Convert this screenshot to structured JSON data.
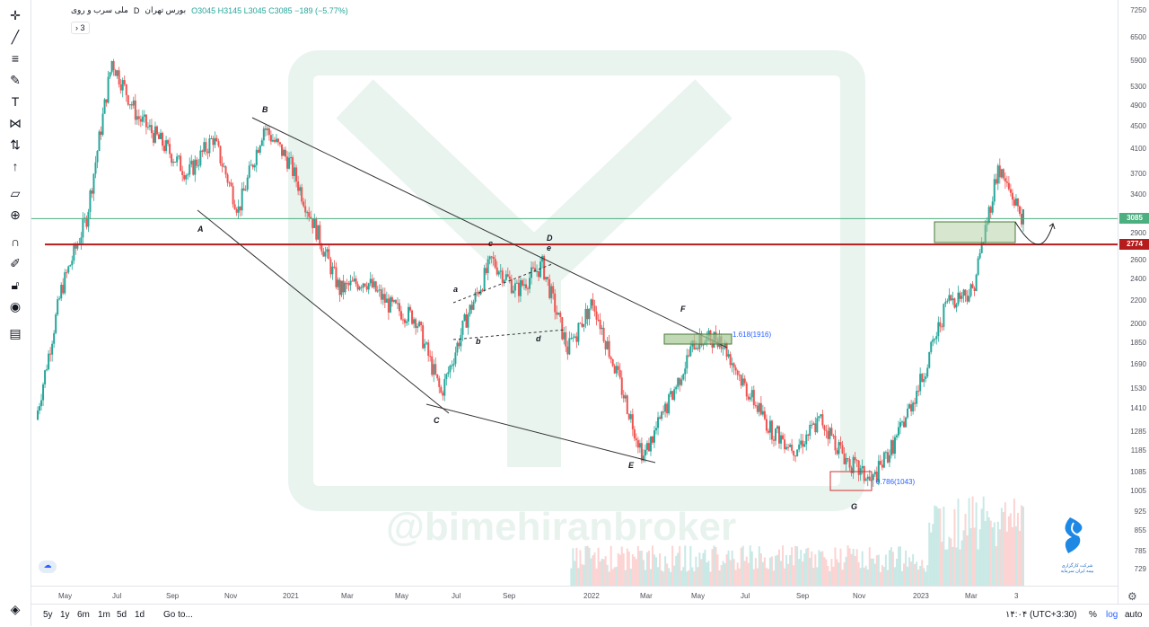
{
  "legend": {
    "symbol": "ملی سرب و روی",
    "interval": "D",
    "exchange": "بورس تهران",
    "ohlc": "O3045 H3145 L3045 C3085 −189 (−5.77%)",
    "collapse": "3"
  },
  "watermark": "@bimehiranbroker",
  "logo_text": [
    "شرکت کارگزاری",
    "بیمه ایران سرمایه"
  ],
  "tools": [
    "crosshair-icon",
    "trendline-icon",
    "fib-icon",
    "brush-icon",
    "text-icon",
    "pattern-icon",
    "measure-icon",
    "arrow-icon",
    "ruler-icon",
    "zoom-icon",
    "magnet-icon",
    "lock-draw-icon",
    "lock-icon",
    "eye-icon",
    "trash-icon"
  ],
  "price_axis": [
    "7250",
    "6500",
    "5900",
    "5300",
    "4900",
    "4500",
    "4100",
    "3700",
    "3400",
    "2900",
    "2600",
    "2400",
    "2200",
    "2000",
    "1850",
    "1690",
    "1530",
    "1410",
    "1285",
    "1185",
    "1085",
    "1005",
    "925",
    "855",
    "785",
    "729"
  ],
  "last_price": "3085",
  "level_price": "2774",
  "time_axis": [
    "May",
    "Jul",
    "Sep",
    "Nov",
    "2021",
    "Mar",
    "May",
    "Jul",
    "Sep",
    "2022",
    "Mar",
    "May",
    "Jul",
    "Sep",
    "Nov",
    "2023",
    "Mar",
    "3"
  ],
  "waves": [
    "A",
    "B",
    "C",
    "a",
    "b",
    "c",
    "d",
    "e",
    "D",
    "E",
    "F",
    "G"
  ],
  "annotations": {
    "fib1": "1.618(1916)",
    "fib2": "0.786(1043)"
  },
  "bottom": {
    "ranges": [
      "5y",
      "1y",
      "6m",
      "1m",
      "5d",
      "1d"
    ],
    "goto": "Go to...",
    "time": "۱۴:۰۴ (UTC+3:30)",
    "percent": "%",
    "log": "log",
    "auto": "auto"
  },
  "colors": {
    "up": "#26a69a",
    "down": "#ef5350",
    "level": "#b71c1c",
    "last": "#4caf80",
    "accent": "#2962ff"
  },
  "chart_data": {
    "type": "candlestick",
    "scale": "log",
    "ylim": [
      700,
      7250
    ],
    "x_range": [
      "2020-04",
      "2023-04"
    ],
    "close_path": [
      {
        "t": "2020-04",
        "v": 1350
      },
      {
        "t": "2020-05",
        "v": 2300
      },
      {
        "t": "2020-06",
        "v": 3100
      },
      {
        "t": "2020-07",
        "v": 5900
      },
      {
        "t": "2020-07b",
        "v": 4700
      },
      {
        "t": "2020-08",
        "v": 4200
      },
      {
        "t": "2020-09",
        "v": 3700
      },
      {
        "t": "2020-10",
        "v": 4300
      },
      {
        "t": "2020-10b",
        "v": 3200
      },
      {
        "t": "2020-11",
        "v": 4500
      },
      {
        "t": "2020-12",
        "v": 3900
      },
      {
        "t": "2021-01",
        "v": 3000
      },
      {
        "t": "2021-02",
        "v": 2300
      },
      {
        "t": "2021-03",
        "v": 2400
      },
      {
        "t": "2021-04",
        "v": 2150
      },
      {
        "t": "2021-05",
        "v": 2050
      },
      {
        "t": "2021-06",
        "v": 1500
      },
      {
        "t": "2021-07",
        "v": 2050
      },
      {
        "t": "2021-08",
        "v": 2600
      },
      {
        "t": "2021-09",
        "v": 2300
      },
      {
        "t": "2021-10",
        "v": 2550
      },
      {
        "t": "2021-11",
        "v": 1800
      },
      {
        "t": "2021-12",
        "v": 2200
      },
      {
        "t": "2022-01",
        "v": 1600
      },
      {
        "t": "2022-02",
        "v": 1160
      },
      {
        "t": "2022-03",
        "v": 1450
      },
      {
        "t": "2022-04",
        "v": 1850
      },
      {
        "t": "2022-05",
        "v": 1900
      },
      {
        "t": "2022-06",
        "v": 1550
      },
      {
        "t": "2022-07",
        "v": 1300
      },
      {
        "t": "2022-08",
        "v": 1200
      },
      {
        "t": "2022-09",
        "v": 1350
      },
      {
        "t": "2022-10",
        "v": 1150
      },
      {
        "t": "2022-11",
        "v": 1040
      },
      {
        "t": "2022-12",
        "v": 1250
      },
      {
        "t": "2023-01",
        "v": 1600
      },
      {
        "t": "2023-02",
        "v": 2200
      },
      {
        "t": "2023-03",
        "v": 2300
      },
      {
        "t": "2023-03b",
        "v": 3800
      },
      {
        "t": "2023-04",
        "v": 3085
      }
    ],
    "horizontal_levels": [
      3085,
      2774
    ]
  }
}
